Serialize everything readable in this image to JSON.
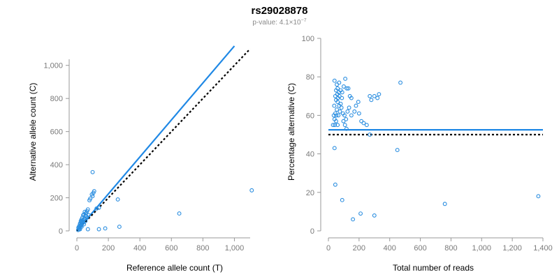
{
  "chart_data": {
    "title": "rs29028878",
    "subtitle_prefix": "p-value: 4.1×10",
    "subtitle_exponent": "−7",
    "colors": {
      "points": "#2b8ee0",
      "fit": "#1f88e5",
      "reference": "#000000",
      "axis": "#999999"
    },
    "panels": [
      {
        "type": "scatter",
        "xlabel": "Reference allele count (T)",
        "ylabel": "Alternative allele count (C)",
        "xlim": [
          0,
          1100
        ],
        "ylim": [
          0,
          1100
        ],
        "xticks": [
          0,
          200,
          400,
          600,
          800,
          1000
        ],
        "xtick_labels": [
          "0",
          "200",
          "400",
          "600",
          "800",
          "1,000"
        ],
        "yticks": [
          0,
          200,
          400,
          600,
          800,
          1000
        ],
        "ytick_labels": [
          "0",
          "200",
          "400",
          "600",
          "800",
          "1,000"
        ],
        "fit_line": {
          "x0": 0,
          "y0": 0,
          "x1": 1000,
          "y1": 1117
        },
        "reference_line": {
          "x0": 0,
          "y0": 0,
          "x1": 1100,
          "y1": 1100
        },
        "points": [
          [
            100,
            355
          ],
          [
            110,
            240
          ],
          [
            105,
            230
          ],
          [
            95,
            220
          ],
          [
            100,
            210
          ],
          [
            85,
            195
          ],
          [
            80,
            185
          ],
          [
            70,
            130
          ],
          [
            65,
            120
          ],
          [
            60,
            110
          ],
          [
            55,
            105
          ],
          [
            50,
            115
          ],
          [
            45,
            100
          ],
          [
            40,
            95
          ],
          [
            35,
            80
          ],
          [
            30,
            70
          ],
          [
            25,
            60
          ],
          [
            20,
            45
          ],
          [
            15,
            30
          ],
          [
            10,
            20
          ],
          [
            12,
            15
          ],
          [
            20,
            10
          ],
          [
            30,
            25
          ],
          [
            45,
            40
          ],
          [
            55,
            60
          ],
          [
            65,
            80
          ],
          [
            75,
            95
          ],
          [
            40,
            50
          ],
          [
            35,
            45
          ],
          [
            25,
            35
          ],
          [
            18,
            25
          ],
          [
            28,
            55
          ],
          [
            22,
            40
          ],
          [
            15,
            10
          ],
          [
            8,
            5
          ],
          [
            70,
            10
          ],
          [
            140,
            10
          ],
          [
            180,
            15
          ],
          [
            270,
            25
          ],
          [
            650,
            105
          ],
          [
            1110,
            245
          ],
          [
            260,
            190
          ],
          [
            140,
            140
          ],
          [
            125,
            135
          ],
          [
            50,
            75
          ],
          [
            60,
            88
          ],
          [
            33,
            62
          ],
          [
            42,
            66
          ],
          [
            38,
            58
          ],
          [
            48,
            70
          ],
          [
            30,
            42
          ],
          [
            26,
            30
          ],
          [
            55,
            92
          ]
        ]
      },
      {
        "type": "scatter",
        "xlabel": "Total number of reads",
        "ylabel": "Percentage alternative (C)",
        "xlim": [
          0,
          1400
        ],
        "ylim": [
          0,
          100
        ],
        "xticks": [
          0,
          200,
          400,
          600,
          800,
          1000,
          1200,
          1400
        ],
        "xtick_labels": [
          "0",
          "200",
          "400",
          "600",
          "800",
          "1,000",
          "1,200",
          "1,400"
        ],
        "yticks": [
          0,
          20,
          40,
          60,
          80,
          100
        ],
        "ytick_labels": [
          "0",
          "20",
          "40",
          "60",
          "80",
          "100"
        ],
        "fit_line": {
          "x0": 0,
          "y0": 52.5,
          "x1": 1400,
          "y1": 52.5
        },
        "reference_line": {
          "x0": 0,
          "y0": 50,
          "x1": 1400,
          "y1": 50
        },
        "points": [
          [
            40,
            78
          ],
          [
            55,
            76
          ],
          [
            60,
            74
          ],
          [
            70,
            77
          ],
          [
            80,
            73
          ],
          [
            90,
            72
          ],
          [
            100,
            75
          ],
          [
            110,
            79
          ],
          [
            120,
            74
          ],
          [
            130,
            74
          ],
          [
            140,
            70
          ],
          [
            150,
            69
          ],
          [
            45,
            70
          ],
          [
            50,
            68
          ],
          [
            60,
            67
          ],
          [
            70,
            65
          ],
          [
            80,
            66
          ],
          [
            55,
            63
          ],
          [
            45,
            61
          ],
          [
            35,
            60
          ],
          [
            40,
            58
          ],
          [
            50,
            57
          ],
          [
            60,
            55
          ],
          [
            65,
            60
          ],
          [
            75,
            62
          ],
          [
            85,
            64
          ],
          [
            95,
            61
          ],
          [
            105,
            60
          ],
          [
            115,
            58
          ],
          [
            125,
            62
          ],
          [
            135,
            64
          ],
          [
            150,
            60
          ],
          [
            170,
            62
          ],
          [
            180,
            65
          ],
          [
            195,
            67
          ],
          [
            200,
            61
          ],
          [
            215,
            57
          ],
          [
            230,
            56
          ],
          [
            250,
            55
          ],
          [
            270,
            70
          ],
          [
            280,
            68
          ],
          [
            300,
            70
          ],
          [
            320,
            69
          ],
          [
            330,
            71
          ],
          [
            470,
            77
          ],
          [
            50,
            73
          ],
          [
            58,
            71
          ],
          [
            62,
            69
          ],
          [
            68,
            72
          ],
          [
            72,
            70
          ],
          [
            88,
            69
          ],
          [
            98,
            57
          ],
          [
            108,
            55
          ],
          [
            118,
            53
          ],
          [
            30,
            55
          ],
          [
            42,
            55
          ],
          [
            38,
            65
          ],
          [
            52,
            60
          ],
          [
            270,
            50
          ],
          [
            40,
            43
          ],
          [
            45,
            24
          ],
          [
            90,
            16
          ],
          [
            160,
            6
          ],
          [
            210,
            9
          ],
          [
            300,
            8
          ],
          [
            450,
            42
          ],
          [
            760,
            14
          ],
          [
            1370,
            18
          ]
        ]
      }
    ]
  }
}
